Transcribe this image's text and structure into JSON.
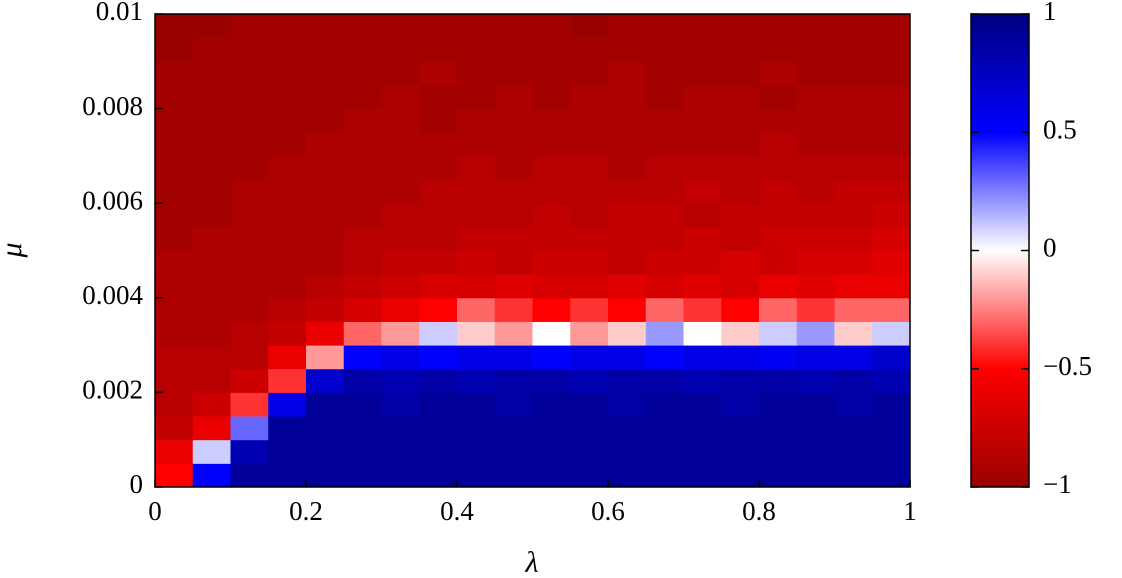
{
  "chart_data": {
    "type": "heatmap",
    "xlabel": "λ",
    "ylabel": "μ",
    "xlim": [
      0,
      1
    ],
    "ylim": [
      0,
      0.01
    ],
    "xticks": [
      0,
      0.2,
      0.4,
      0.6,
      0.8,
      1
    ],
    "yticks": [
      0,
      0.002,
      0.004,
      0.006,
      0.008,
      0.01
    ],
    "clim": [
      -1,
      1
    ],
    "cticks": [
      {
        "value": -1,
        "label": "−1"
      },
      {
        "value": -0.5,
        "label": "−0.5"
      },
      0,
      0.5,
      1
    ],
    "colormap": [
      "#990000",
      "#ff0000",
      "#ffffff",
      "#0000ff",
      "#000080"
    ],
    "values": [
      [
        -0.5,
        0.5,
        0.9,
        0.9,
        0.9,
        0.9,
        0.9,
        0.9,
        0.9,
        0.9,
        0.9,
        0.9,
        0.9,
        0.9,
        0.9,
        0.9,
        0.9,
        0.9,
        0.9,
        0.9
      ],
      [
        -0.6,
        0.1,
        0.8,
        0.9,
        0.9,
        0.9,
        0.9,
        0.9,
        0.9,
        0.9,
        0.9,
        0.9,
        0.9,
        0.9,
        0.9,
        0.9,
        0.9,
        0.9,
        0.9,
        0.9
      ],
      [
        -0.8,
        -0.6,
        0.3,
        0.9,
        0.9,
        0.9,
        0.9,
        0.9,
        0.9,
        0.9,
        0.9,
        0.9,
        0.9,
        0.9,
        0.9,
        0.9,
        0.9,
        0.9,
        0.9,
        0.9
      ],
      [
        -0.85,
        -0.75,
        -0.4,
        0.6,
        0.9,
        0.9,
        0.85,
        0.9,
        0.9,
        0.85,
        0.9,
        0.9,
        0.85,
        0.9,
        0.9,
        0.85,
        0.9,
        0.9,
        0.85,
        0.9
      ],
      [
        -0.85,
        -0.85,
        -0.75,
        -0.4,
        0.7,
        0.85,
        0.8,
        0.85,
        0.8,
        0.85,
        0.85,
        0.8,
        0.85,
        0.85,
        0.8,
        0.85,
        0.85,
        0.8,
        0.85,
        0.8
      ],
      [
        -0.85,
        -0.85,
        -0.85,
        -0.6,
        -0.2,
        0.5,
        0.6,
        0.5,
        0.6,
        0.6,
        0.5,
        0.6,
        0.6,
        0.5,
        0.6,
        0.6,
        0.55,
        0.6,
        0.6,
        0.7
      ],
      [
        -0.9,
        -0.9,
        -0.85,
        -0.8,
        -0.6,
        -0.3,
        -0.2,
        0.1,
        -0.1,
        -0.2,
        0,
        -0.2,
        -0.1,
        0.2,
        0,
        -0.1,
        0.1,
        0.2,
        -0.1,
        0.1
      ],
      [
        -0.9,
        -0.9,
        -0.9,
        -0.85,
        -0.8,
        -0.7,
        -0.6,
        -0.5,
        -0.3,
        -0.4,
        -0.5,
        -0.4,
        -0.5,
        -0.3,
        -0.4,
        -0.5,
        -0.3,
        -0.4,
        -0.3,
        -0.3
      ],
      [
        -0.9,
        -0.9,
        -0.9,
        -0.9,
        -0.85,
        -0.8,
        -0.75,
        -0.7,
        -0.7,
        -0.65,
        -0.7,
        -0.7,
        -0.65,
        -0.7,
        -0.65,
        -0.7,
        -0.6,
        -0.65,
        -0.6,
        -0.6
      ],
      [
        -0.9,
        -0.9,
        -0.9,
        -0.9,
        -0.9,
        -0.85,
        -0.8,
        -0.8,
        -0.75,
        -0.8,
        -0.75,
        -0.75,
        -0.8,
        -0.75,
        -0.75,
        -0.7,
        -0.75,
        -0.7,
        -0.7,
        -0.65
      ],
      [
        -0.95,
        -0.9,
        -0.9,
        -0.9,
        -0.9,
        -0.85,
        -0.85,
        -0.85,
        -0.8,
        -0.8,
        -0.8,
        -0.8,
        -0.8,
        -0.8,
        -0.75,
        -0.8,
        -0.75,
        -0.75,
        -0.75,
        -0.7
      ],
      [
        -0.95,
        -0.95,
        -0.9,
        -0.9,
        -0.9,
        -0.9,
        -0.85,
        -0.85,
        -0.85,
        -0.85,
        -0.8,
        -0.85,
        -0.8,
        -0.8,
        -0.85,
        -0.8,
        -0.8,
        -0.8,
        -0.8,
        -0.75
      ],
      [
        -0.95,
        -0.95,
        -0.9,
        -0.9,
        -0.9,
        -0.9,
        -0.9,
        -0.85,
        -0.85,
        -0.85,
        -0.85,
        -0.85,
        -0.85,
        -0.85,
        -0.8,
        -0.85,
        -0.8,
        -0.85,
        -0.8,
        -0.8
      ],
      [
        -0.95,
        -0.95,
        -0.95,
        -0.9,
        -0.9,
        -0.9,
        -0.9,
        -0.9,
        -0.85,
        -0.9,
        -0.85,
        -0.85,
        -0.9,
        -0.85,
        -0.85,
        -0.85,
        -0.85,
        -0.85,
        -0.85,
        -0.85
      ],
      [
        -0.95,
        -0.95,
        -0.95,
        -0.95,
        -0.9,
        -0.9,
        -0.9,
        -0.9,
        -0.9,
        -0.9,
        -0.9,
        -0.9,
        -0.9,
        -0.9,
        -0.9,
        -0.9,
        -0.85,
        -0.9,
        -0.9,
        -0.9
      ],
      [
        -0.95,
        -0.95,
        -0.95,
        -0.95,
        -0.95,
        -0.9,
        -0.9,
        -0.95,
        -0.9,
        -0.9,
        -0.9,
        -0.9,
        -0.9,
        -0.9,
        -0.9,
        -0.9,
        -0.9,
        -0.9,
        -0.9,
        -0.9
      ],
      [
        -0.95,
        -0.95,
        -0.95,
        -0.95,
        -0.95,
        -0.95,
        -0.9,
        -0.95,
        -0.95,
        -0.9,
        -0.95,
        -0.9,
        -0.9,
        -0.95,
        -0.9,
        -0.9,
        -0.95,
        -0.9,
        -0.9,
        -0.9
      ],
      [
        -0.95,
        -0.95,
        -0.95,
        -0.95,
        -0.95,
        -0.95,
        -0.95,
        -0.9,
        -0.95,
        -0.95,
        -0.95,
        -0.95,
        -0.9,
        -0.95,
        -0.95,
        -0.95,
        -0.9,
        -0.95,
        -0.95,
        -0.95
      ],
      [
        -1,
        -0.95,
        -0.95,
        -0.95,
        -0.95,
        -0.95,
        -0.95,
        -0.95,
        -0.95,
        -0.95,
        -0.95,
        -0.95,
        -0.95,
        -0.95,
        -0.95,
        -0.95,
        -0.95,
        -0.95,
        -0.95,
        -0.95
      ],
      [
        -1,
        -1,
        -0.95,
        -0.95,
        -0.95,
        -0.95,
        -0.95,
        -0.95,
        -0.95,
        -0.95,
        -0.95,
        -1,
        -0.95,
        -0.95,
        -0.95,
        -0.95,
        -0.95,
        -0.95,
        -0.95,
        -0.95
      ]
    ]
  }
}
